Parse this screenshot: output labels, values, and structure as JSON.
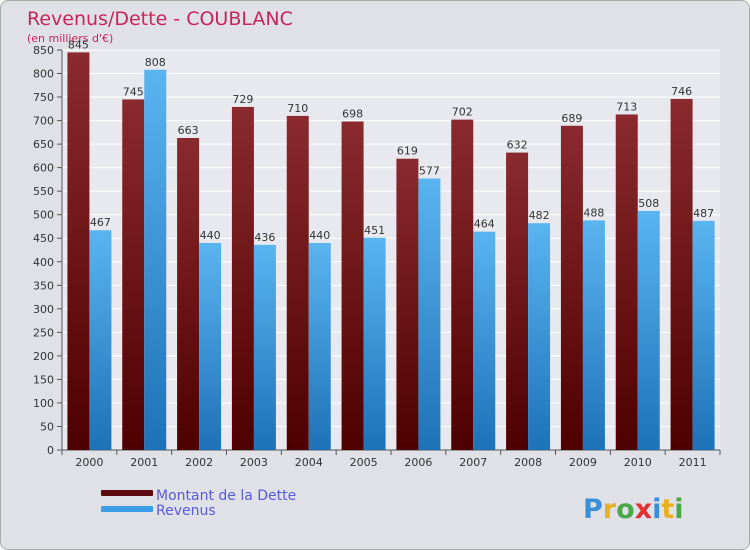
{
  "chart_data": {
    "type": "bar",
    "title": "Revenus/Dette - COUBLANC",
    "subtitle": "(en milliers d'€)",
    "categories": [
      "2000",
      "2001",
      "2002",
      "2003",
      "2004",
      "2005",
      "2006",
      "2007",
      "2008",
      "2009",
      "2010",
      "2011"
    ],
    "series": [
      {
        "name": "Montant de la Dette",
        "values": [
          845,
          745,
          663,
          729,
          710,
          698,
          619,
          702,
          632,
          689,
          713,
          746
        ],
        "color": "#7f1c20"
      },
      {
        "name": "Revenus",
        "values": [
          467,
          808,
          440,
          436,
          440,
          451,
          577,
          464,
          482,
          488,
          508,
          487
        ],
        "color": "#4aa6e6"
      }
    ],
    "ylim": [
      0,
      850
    ],
    "ytick_step": 50,
    "grid": true,
    "legend": "bottom-left"
  },
  "colors": {
    "title": "#c8245a",
    "legend_text": "#5a5ae0",
    "background": "#dfe1e6",
    "plot_background": "#e8e9ee",
    "grid": "#ffffff"
  },
  "watermark": "Prox iti"
}
